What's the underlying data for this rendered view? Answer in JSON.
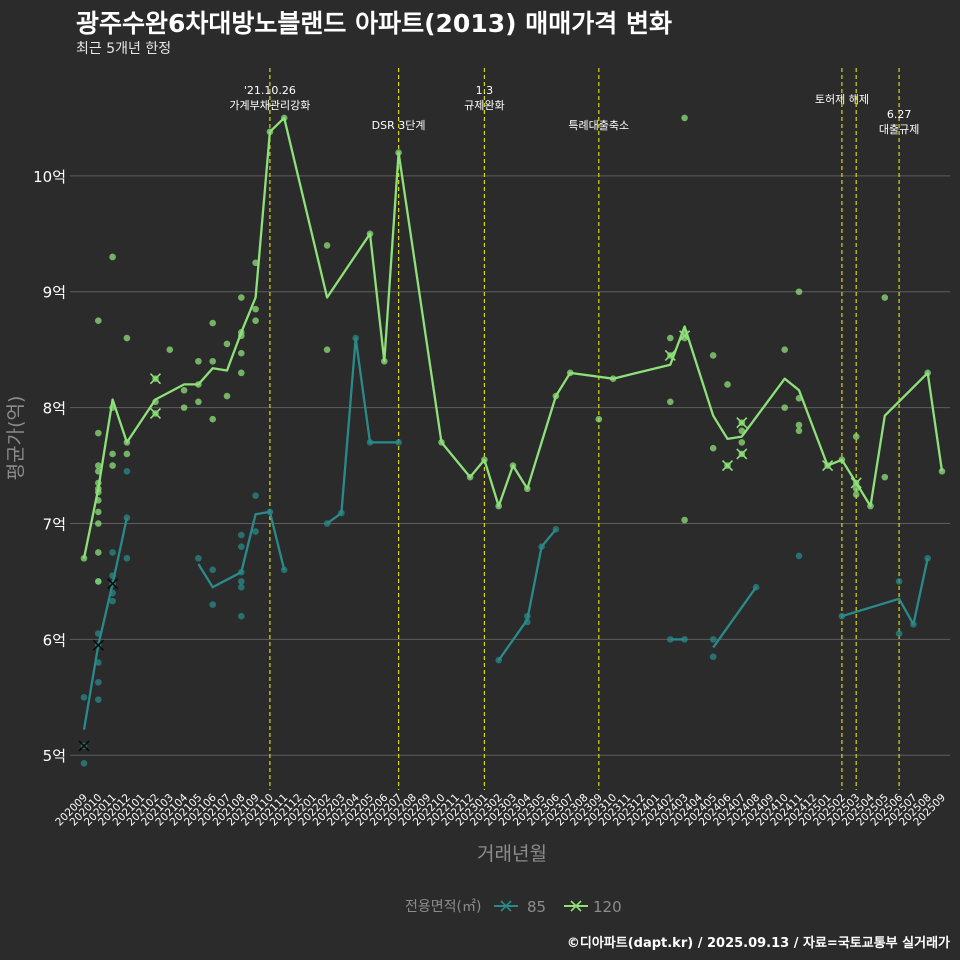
{
  "title": "광주수완6차대방노블랜드 아파트(2013) 매매가격 변화",
  "subtitle": "최근 5개년 한정",
  "credit": "©디아파트(dapt.kr) / 2025.09.13 / 자료=국토교통부 실거래가",
  "colors": {
    "background": "#2b2b2b",
    "grid": "#5e5e5e",
    "s85": "#2a8a8a",
    "s120": "#8ee07a",
    "event_line": "#d8d800",
    "text": "#ffffff",
    "axis_title": "#8c8c8c"
  },
  "chart_data": {
    "type": "line",
    "xlabel": "거래년월",
    "ylabel": "평균가(억)",
    "x_categories": [
      "202009",
      "202010",
      "202011",
      "202012",
      "202101",
      "202102",
      "202103",
      "202104",
      "202105",
      "202106",
      "202107",
      "202108",
      "202109",
      "202110",
      "202111",
      "202112",
      "202201",
      "202202",
      "202203",
      "202204",
      "202205",
      "202206",
      "202207",
      "202208",
      "202209",
      "202210",
      "202211",
      "202212",
      "202301",
      "202302",
      "202303",
      "202304",
      "202305",
      "202306",
      "202307",
      "202308",
      "202309",
      "202310",
      "202311",
      "202312",
      "202401",
      "202402",
      "202403",
      "202404",
      "202405",
      "202406",
      "202407",
      "202408",
      "202409",
      "202410",
      "202411",
      "202412",
      "202501",
      "202502",
      "202503",
      "202504",
      "202505",
      "202506",
      "202507",
      "202508",
      "202509"
    ],
    "y_ticks": [
      {
        "value": 5,
        "label": "5억"
      },
      {
        "value": 6,
        "label": "6억"
      },
      {
        "value": 7,
        "label": "7억"
      },
      {
        "value": 8,
        "label": "8억"
      },
      {
        "value": 9,
        "label": "9억"
      },
      {
        "value": 10,
        "label": "10억"
      }
    ],
    "ylim": [
      4.7,
      11.0
    ],
    "grid": true,
    "legend": {
      "title": "전용면적(㎡)",
      "position": "bottom",
      "items": [
        "85",
        "120"
      ]
    },
    "events": [
      {
        "x": "202110",
        "lines": [
          "'21.10.26",
          "가계부채관리강화"
        ]
      },
      {
        "x": "202207",
        "lines": [
          "DSR 3단계"
        ]
      },
      {
        "x": "202301",
        "lines": [
          "1.3",
          "규제완화"
        ]
      },
      {
        "x": "202309",
        "lines": [
          "특례대출축소"
        ]
      },
      {
        "x": "202502",
        "lines": [
          "토허제 해제"
        ]
      },
      {
        "x": "202503",
        "lines": []
      },
      {
        "x": "202506",
        "lines": [
          "6.27",
          "대출규제"
        ]
      }
    ],
    "series": [
      {
        "name": "85",
        "line_segments": [
          [
            [
              "202009",
              5.22
            ],
            [
              "202010",
              5.95
            ],
            [
              "202011",
              6.48
            ],
            [
              "202012",
              7.05
            ]
          ],
          [
            [
              "202105",
              6.65
            ],
            [
              "202106",
              6.45
            ],
            [
              "202108",
              6.58
            ],
            [
              "202109",
              7.08
            ],
            [
              "202110",
              7.1
            ],
            [
              "202111",
              6.6
            ]
          ],
          [
            [
              "202202",
              7.0
            ],
            [
              "202203",
              7.09
            ],
            [
              "202204",
              8.6
            ],
            [
              "202205",
              7.7
            ],
            [
              "202207",
              7.7
            ]
          ],
          [
            [
              "202302",
              5.82
            ],
            [
              "202304",
              6.17
            ],
            [
              "202305",
              6.8
            ],
            [
              "202306",
              6.95
            ]
          ],
          [
            [
              "202402",
              6.0
            ],
            [
              "202403",
              6.0
            ]
          ],
          [
            [
              "202405",
              5.93
            ],
            [
              "202408",
              6.45
            ]
          ],
          [
            [
              "202502",
              6.2
            ],
            [
              "202506",
              6.35
            ],
            [
              "202507",
              6.13
            ],
            [
              "202508",
              6.7
            ]
          ]
        ],
        "points": [
          [
            "202009",
            5.5
          ],
          [
            "202009",
            4.93
          ],
          [
            "202009",
            5.08
          ],
          [
            "202010",
            6.05
          ],
          [
            "202010",
            5.95
          ],
          [
            "202010",
            5.8
          ],
          [
            "202010",
            5.63
          ],
          [
            "202010",
            5.48
          ],
          [
            "202010",
            6.5
          ],
          [
            "202011",
            6.75
          ],
          [
            "202011",
            6.55
          ],
          [
            "202011",
            6.48
          ],
          [
            "202011",
            6.4
          ],
          [
            "202011",
            6.33
          ],
          [
            "202012",
            7.45
          ],
          [
            "202012",
            7.05
          ],
          [
            "202012",
            6.7
          ],
          [
            "202105",
            6.7
          ],
          [
            "202106",
            6.6
          ],
          [
            "202106",
            6.3
          ],
          [
            "202108",
            6.9
          ],
          [
            "202108",
            6.8
          ],
          [
            "202108",
            6.58
          ],
          [
            "202108",
            6.5
          ],
          [
            "202108",
            6.45
          ],
          [
            "202108",
            6.2
          ],
          [
            "202109",
            7.24
          ],
          [
            "202109",
            6.93
          ],
          [
            "202110",
            7.1
          ],
          [
            "202111",
            6.6
          ],
          [
            "202202",
            7.0
          ],
          [
            "202203",
            7.09
          ],
          [
            "202204",
            8.6
          ],
          [
            "202205",
            7.7
          ],
          [
            "202207",
            7.7
          ],
          [
            "202302",
            5.82
          ],
          [
            "202304",
            6.2
          ],
          [
            "202304",
            6.15
          ],
          [
            "202305",
            6.8
          ],
          [
            "202306",
            6.95
          ],
          [
            "202402",
            6.0
          ],
          [
            "202403",
            6.0
          ],
          [
            "202405",
            6.0
          ],
          [
            "202405",
            5.85
          ],
          [
            "202408",
            6.45
          ],
          [
            "202411",
            6.72
          ],
          [
            "202502",
            6.2
          ],
          [
            "202506",
            6.5
          ],
          [
            "202506",
            6.05
          ],
          [
            "202507",
            6.13
          ],
          [
            "202508",
            6.7
          ]
        ],
        "cancelled": [
          [
            "202009",
            5.08
          ],
          [
            "202010",
            5.95
          ],
          [
            "202011",
            6.48
          ]
        ]
      },
      {
        "name": "120",
        "line_segments": [
          [
            [
              "202009",
              6.7
            ],
            [
              "202010",
              7.3
            ],
            [
              "202011",
              8.07
            ],
            [
              "202012",
              7.7
            ],
            [
              "202102",
              8.07
            ],
            [
              "202104",
              8.2
            ],
            [
              "202105",
              8.2
            ],
            [
              "202106",
              8.34
            ],
            [
              "202107",
              8.32
            ],
            [
              "202108",
              8.65
            ],
            [
              "202109",
              8.95
            ],
            [
              "202110",
              10.38
            ],
            [
              "202111",
              10.5
            ],
            [
              "202202",
              8.95
            ],
            [
              "202205",
              9.5
            ],
            [
              "202206",
              8.4
            ],
            [
              "202207",
              10.2
            ],
            [
              "202210",
              7.7
            ],
            [
              "202212",
              7.4
            ],
            [
              "202301",
              7.55
            ],
            [
              "202302",
              7.15
            ],
            [
              "202303",
              7.5
            ],
            [
              "202304",
              7.3
            ],
            [
              "202306",
              8.1
            ],
            [
              "202307",
              8.3
            ],
            [
              "202310",
              8.25
            ],
            [
              "202402",
              8.37
            ],
            [
              "202403",
              8.7
            ],
            [
              "202405",
              7.93
            ],
            [
              "202406",
              7.73
            ],
            [
              "202407",
              7.75
            ],
            [
              "202410",
              8.25
            ],
            [
              "202411",
              8.15
            ],
            [
              "202501",
              7.5
            ],
            [
              "202502",
              7.55
            ],
            [
              "202503",
              7.35
            ],
            [
              "202504",
              7.15
            ],
            [
              "202505",
              7.93
            ],
            [
              "202508",
              8.3
            ],
            [
              "202509",
              7.45
            ]
          ]
        ],
        "points": [
          [
            "202009",
            6.7
          ],
          [
            "202010",
            8.75
          ],
          [
            "202010",
            7.78
          ],
          [
            "202010",
            7.5
          ],
          [
            "202010",
            7.45
          ],
          [
            "202010",
            7.35
          ],
          [
            "202010",
            7.3
          ],
          [
            "202010",
            7.27
          ],
          [
            "202010",
            7.2
          ],
          [
            "202010",
            7.1
          ],
          [
            "202010",
            7.0
          ],
          [
            "202010",
            6.75
          ],
          [
            "202010",
            6.5
          ],
          [
            "202011",
            9.3
          ],
          [
            "202011",
            8.0
          ],
          [
            "202011",
            7.6
          ],
          [
            "202011",
            7.5
          ],
          [
            "202012",
            8.6
          ],
          [
            "202012",
            7.7
          ],
          [
            "202012",
            7.6
          ],
          [
            "202102",
            8.25
          ],
          [
            "202102",
            8.05
          ],
          [
            "202102",
            7.95
          ],
          [
            "202103",
            8.5
          ],
          [
            "202104",
            8.15
          ],
          [
            "202104",
            8.0
          ],
          [
            "202105",
            8.4
          ],
          [
            "202105",
            8.2
          ],
          [
            "202105",
            8.05
          ],
          [
            "202106",
            8.73
          ],
          [
            "202106",
            8.4
          ],
          [
            "202106",
            7.9
          ],
          [
            "202107",
            8.55
          ],
          [
            "202107",
            8.1
          ],
          [
            "202108",
            8.95
          ],
          [
            "202108",
            8.65
          ],
          [
            "202108",
            8.62
          ],
          [
            "202108",
            8.47
          ],
          [
            "202108",
            8.3
          ],
          [
            "202109",
            9.25
          ],
          [
            "202109",
            8.85
          ],
          [
            "202109",
            8.75
          ],
          [
            "202110",
            10.38
          ],
          [
            "202111",
            10.5
          ],
          [
            "202202",
            9.4
          ],
          [
            "202202",
            8.5
          ],
          [
            "202205",
            9.5
          ],
          [
            "202206",
            8.4
          ],
          [
            "202207",
            10.2
          ],
          [
            "202210",
            7.7
          ],
          [
            "202212",
            7.4
          ],
          [
            "202301",
            7.55
          ],
          [
            "202302",
            7.15
          ],
          [
            "202303",
            7.5
          ],
          [
            "202304",
            7.3
          ],
          [
            "202306",
            8.1
          ],
          [
            "202307",
            8.3
          ],
          [
            "202309",
            7.9
          ],
          [
            "202310",
            8.25
          ],
          [
            "202402",
            8.6
          ],
          [
            "202402",
            8.45
          ],
          [
            "202402",
            8.05
          ],
          [
            "202403",
            10.5
          ],
          [
            "202403",
            8.65
          ],
          [
            "202403",
            8.6
          ],
          [
            "202403",
            7.03
          ],
          [
            "202405",
            8.45
          ],
          [
            "202405",
            7.65
          ],
          [
            "202406",
            8.2
          ],
          [
            "202406",
            7.5
          ],
          [
            "202407",
            7.87
          ],
          [
            "202407",
            7.8
          ],
          [
            "202407",
            7.7
          ],
          [
            "202407",
            7.6
          ],
          [
            "202410",
            8.5
          ],
          [
            "202410",
            8.0
          ],
          [
            "202411",
            9.0
          ],
          [
            "202411",
            8.08
          ],
          [
            "202411",
            7.85
          ],
          [
            "202411",
            7.8
          ],
          [
            "202501",
            7.5
          ],
          [
            "202502",
            7.55
          ],
          [
            "202503",
            7.75
          ],
          [
            "202503",
            7.35
          ],
          [
            "202503",
            7.3
          ],
          [
            "202503",
            7.25
          ],
          [
            "202504",
            7.15
          ],
          [
            "202505",
            8.95
          ],
          [
            "202505",
            7.4
          ],
          [
            "202508",
            8.3
          ],
          [
            "202509",
            7.45
          ]
        ],
        "cancelled": [
          [
            "202102",
            8.25
          ],
          [
            "202102",
            7.95
          ],
          [
            "202402",
            8.45
          ],
          [
            "202403",
            8.62
          ],
          [
            "202406",
            7.5
          ],
          [
            "202407",
            7.87
          ],
          [
            "202407",
            7.6
          ],
          [
            "202501",
            7.5
          ],
          [
            "202503",
            7.35
          ]
        ]
      }
    ]
  }
}
